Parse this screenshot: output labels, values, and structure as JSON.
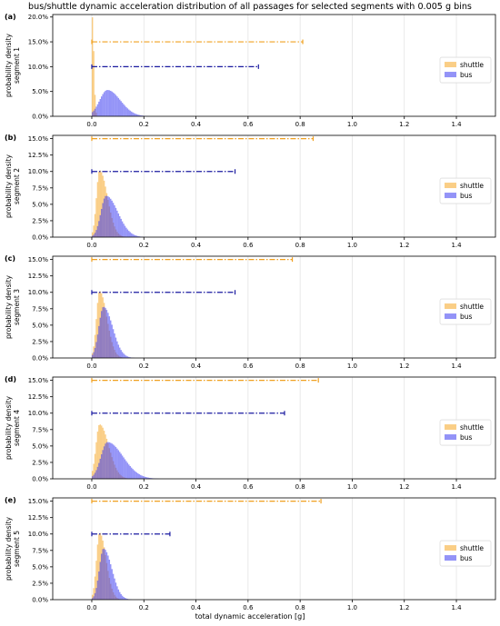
{
  "title": "bus/shuttle dynamic acceleration distribution of all passages for selected segments with 0.005 g bins",
  "xlabel": "total dynamic acceleration [g]",
  "colors": {
    "shuttle": "#f5a623",
    "bus": "#3b3bf0",
    "shuttle_line": "#f0a020",
    "bus_line": "#1a1aa0"
  },
  "chart_data": [
    {
      "type": "bar",
      "panel_label": "(a)",
      "ylabel": "probability density\nsegment 1",
      "xlim": [
        -0.15,
        1.55
      ],
      "ylim": [
        0,
        20.5
      ],
      "xticks": [
        "0.0",
        "0.2",
        "0.4",
        "0.6",
        "0.8",
        "1.0",
        "1.2",
        "1.4"
      ],
      "yticks": [
        "0.0%",
        "5.0%",
        "10.0%",
        "15.0%",
        "20.0%"
      ],
      "grid": true,
      "legend_position": "right",
      "series": [
        {
          "name": "shuttle",
          "peak_x": 0.002,
          "peak_y": 20.0,
          "spread_left": 0.002,
          "spread_right": 0.006,
          "tail_end": 0.03
        },
        {
          "name": "bus",
          "peak_x": 0.06,
          "peak_y": 5.3,
          "spread_left": 0.03,
          "spread_right": 0.05,
          "tail_end": 0.3
        }
      ],
      "range_lines": [
        {
          "series": "shuttle",
          "y": 15.0,
          "x_start": 0.0,
          "x_end": 0.81
        },
        {
          "series": "bus",
          "y": 10.0,
          "x_start": 0.0,
          "x_end": 0.64
        }
      ]
    },
    {
      "type": "bar",
      "panel_label": "(b)",
      "ylabel": "probability density\nsegment 2",
      "xlim": [
        -0.15,
        1.55
      ],
      "ylim": [
        0,
        15.5
      ],
      "xticks": [
        "0.0",
        "0.2",
        "0.4",
        "0.6",
        "0.8",
        "1.0",
        "1.2",
        "1.4"
      ],
      "yticks": [
        "0.0%",
        "2.5%",
        "5.0%",
        "7.5%",
        "10.0%",
        "12.5%",
        "15.0%"
      ],
      "grid": true,
      "legend_position": "right",
      "series": [
        {
          "name": "shuttle",
          "peak_x": 0.03,
          "peak_y": 10.2,
          "spread_left": 0.012,
          "spread_right": 0.03,
          "tail_end": 0.15
        },
        {
          "name": "bus",
          "peak_x": 0.055,
          "peak_y": 6.3,
          "spread_left": 0.02,
          "spread_right": 0.045,
          "tail_end": 0.22
        }
      ],
      "range_lines": [
        {
          "series": "shuttle",
          "y": 15.0,
          "x_start": 0.0,
          "x_end": 0.85
        },
        {
          "series": "bus",
          "y": 10.0,
          "x_start": 0.0,
          "x_end": 0.55
        }
      ]
    },
    {
      "type": "bar",
      "panel_label": "(c)",
      "ylabel": "probability density\nsegment 3",
      "xlim": [
        -0.15,
        1.55
      ],
      "ylim": [
        0,
        15.5
      ],
      "xticks": [
        "0.0",
        "0.2",
        "0.4",
        "0.6",
        "0.8",
        "1.0",
        "1.2",
        "1.4"
      ],
      "yticks": [
        "0.0%",
        "2.5%",
        "5.0%",
        "7.5%",
        "10.0%",
        "12.5%",
        "15.0%"
      ],
      "grid": true,
      "legend_position": "right",
      "series": [
        {
          "name": "shuttle",
          "peak_x": 0.03,
          "peak_y": 10.2,
          "spread_left": 0.012,
          "spread_right": 0.028,
          "tail_end": 0.16
        },
        {
          "name": "bus",
          "peak_x": 0.045,
          "peak_y": 7.8,
          "spread_left": 0.018,
          "spread_right": 0.035,
          "tail_end": 0.22
        }
      ],
      "range_lines": [
        {
          "series": "shuttle",
          "y": 15.0,
          "x_start": 0.0,
          "x_end": 0.77
        },
        {
          "series": "bus",
          "y": 10.0,
          "x_start": 0.0,
          "x_end": 0.55
        }
      ]
    },
    {
      "type": "bar",
      "panel_label": "(d)",
      "ylabel": "probability density\nsegment 4",
      "xlim": [
        -0.15,
        1.55
      ],
      "ylim": [
        0,
        15.5
      ],
      "xticks": [
        "0.0",
        "0.2",
        "0.4",
        "0.6",
        "0.8",
        "1.0",
        "1.2",
        "1.4"
      ],
      "yticks": [
        "0.0%",
        "2.5%",
        "5.0%",
        "7.5%",
        "10.0%",
        "12.5%",
        "15.0%"
      ],
      "grid": true,
      "legend_position": "right",
      "series": [
        {
          "name": "shuttle",
          "peak_x": 0.03,
          "peak_y": 8.3,
          "spread_left": 0.014,
          "spread_right": 0.035,
          "tail_end": 0.22
        },
        {
          "name": "bus",
          "peak_x": 0.06,
          "peak_y": 5.6,
          "spread_left": 0.025,
          "spread_right": 0.06,
          "tail_end": 0.28
        }
      ],
      "range_lines": [
        {
          "series": "shuttle",
          "y": 15.0,
          "x_start": 0.0,
          "x_end": 0.87
        },
        {
          "series": "bus",
          "y": 10.0,
          "x_start": 0.0,
          "x_end": 0.74
        }
      ]
    },
    {
      "type": "bar",
      "panel_label": "(e)",
      "ylabel": "probability density\nsegment 5",
      "xlim": [
        -0.15,
        1.55
      ],
      "ylim": [
        0,
        15.5
      ],
      "xticks": [
        "0.0",
        "0.2",
        "0.4",
        "0.6",
        "0.8",
        "1.0",
        "1.2",
        "1.4"
      ],
      "yticks": [
        "0.0%",
        "2.5%",
        "5.0%",
        "7.5%",
        "10.0%",
        "12.5%",
        "15.0%"
      ],
      "grid": true,
      "legend_position": "right",
      "series": [
        {
          "name": "shuttle",
          "peak_x": 0.03,
          "peak_y": 10.2,
          "spread_left": 0.012,
          "spread_right": 0.025,
          "tail_end": 0.15
        },
        {
          "name": "bus",
          "peak_x": 0.045,
          "peak_y": 7.8,
          "spread_left": 0.016,
          "spread_right": 0.032,
          "tail_end": 0.2
        }
      ],
      "range_lines": [
        {
          "series": "shuttle",
          "y": 15.0,
          "x_start": 0.0,
          "x_end": 0.88
        },
        {
          "series": "bus",
          "y": 10.0,
          "x_start": 0.0,
          "x_end": 0.3
        }
      ]
    }
  ]
}
